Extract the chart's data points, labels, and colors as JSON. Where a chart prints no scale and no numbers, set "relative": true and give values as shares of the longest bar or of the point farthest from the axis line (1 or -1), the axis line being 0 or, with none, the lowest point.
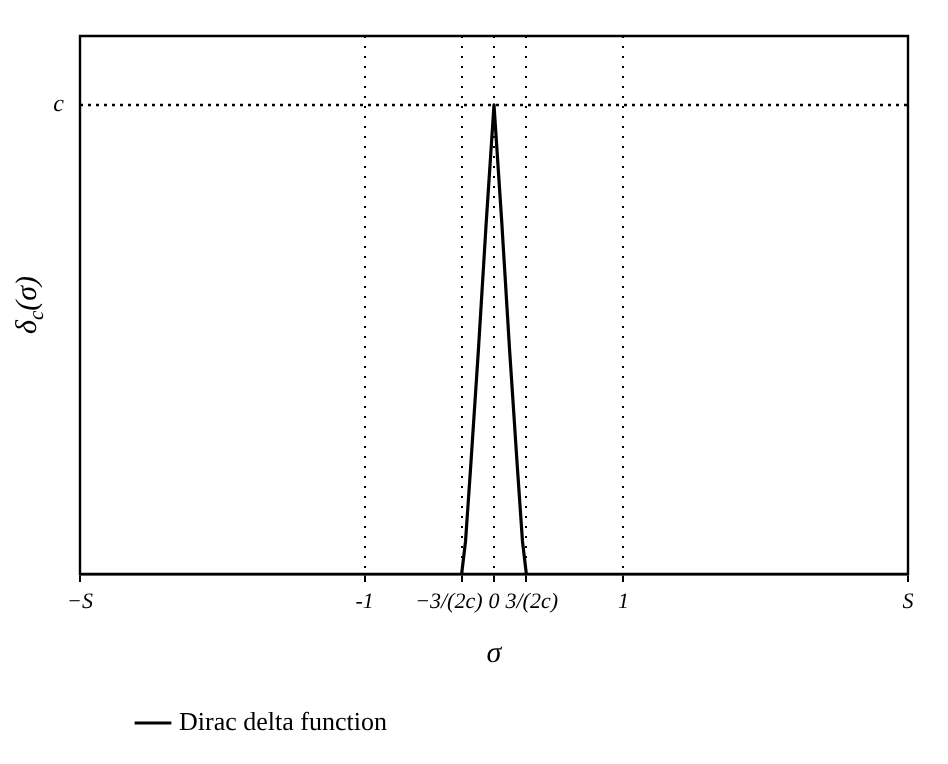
{
  "chart_data": {
    "type": "line",
    "relative": true,
    "xlabel": "σ",
    "ylabel": "δ$_{c}$(σ)",
    "x": [
      -0.25,
      -0.22,
      -0.18,
      -0.12,
      -0.06,
      0,
      0.06,
      0.12,
      0.18,
      0.22,
      0.25
    ],
    "series": [
      {
        "name": "Dirac delta function",
        "color": "#000000",
        "values": [
          0,
          0.07,
          0.23,
          0.48,
          0.75,
          1,
          0.75,
          0.48,
          0.23,
          0.07,
          0
        ]
      }
    ],
    "xlim": [
      -3.2,
      3.2
    ],
    "xticks": [
      {
        "value": -3.2,
        "label": "−S"
      },
      -1,
      {
        "value": -0.25,
        "label": "−3/(2c)"
      },
      0,
      {
        "value": 0.25,
        "label": "3/(2c)"
      },
      1,
      {
        "value": 3.2,
        "label": "S"
      }
    ],
    "ref_lines": [
      {
        "axis": "y",
        "value": 1,
        "label": "c",
        "line_style": "dotted"
      }
    ],
    "grid": "x",
    "legend": "bottom",
    "marker": "none",
    "line_style": "solid"
  }
}
